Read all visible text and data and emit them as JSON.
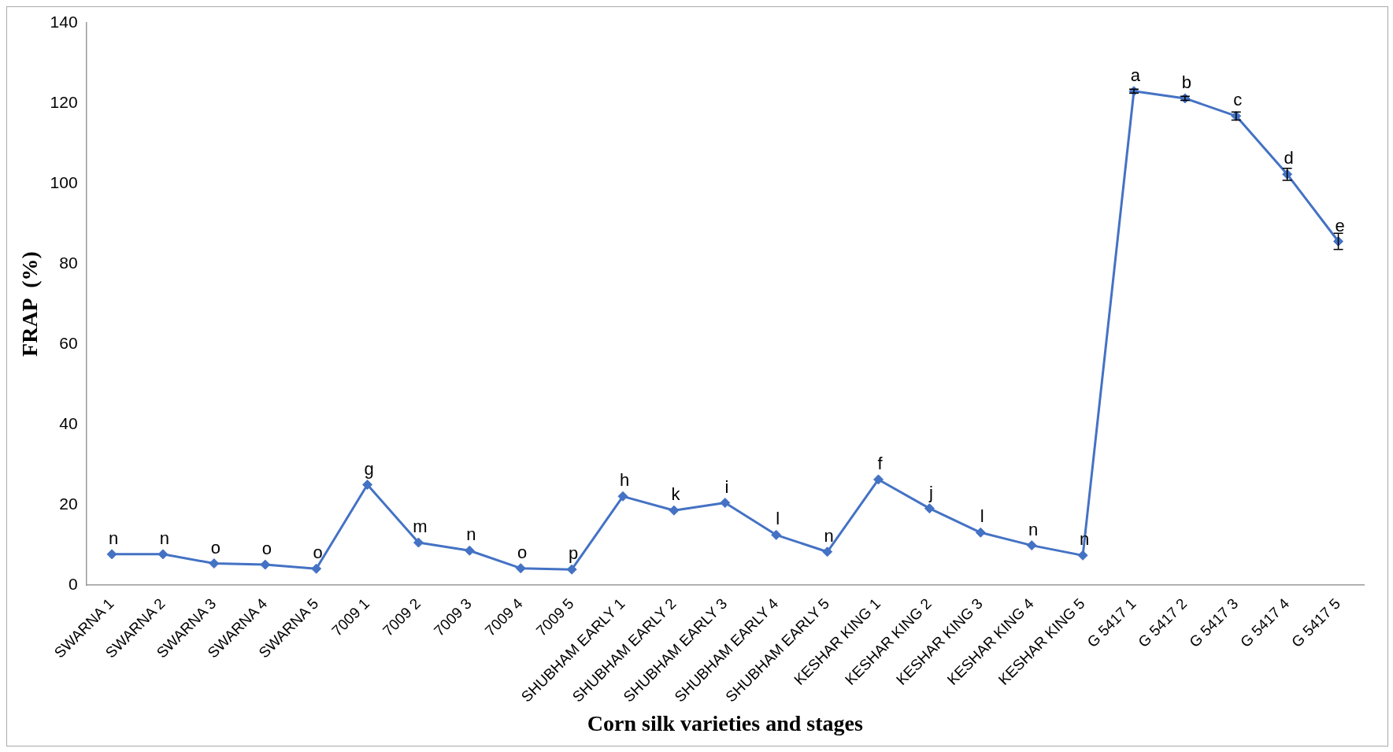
{
  "chart_data": {
    "type": "line",
    "xlabel": "Corn silk varieties and stages",
    "ylabel": "FRAP  (%)",
    "categories": [
      "SWARNA 1",
      "SWARNA 2",
      "SWARNA 3",
      "SWARNA 4",
      "SWARNA 5",
      "7009 1",
      "7009 2",
      "7009 3",
      "7009 4",
      "7009 5",
      "SHUBHAM EARLY 1",
      "SHUBHAM EARLY 2",
      "SHUBHAM EARLY 3",
      "SHUBHAM EARLY 4",
      "SHUBHAM EARLY 5",
      "KESHAR KING 1",
      "KESHAR KING 2",
      "KESHAR KING 3",
      "KESHAR KING 4",
      "KESHAR KING 5",
      "G 5417 1",
      "G 5417 2",
      "G 5417 3",
      "G 5417 4",
      "G 5417 5"
    ],
    "series": [
      {
        "color": "#4472c4",
        "values": [
          7.7,
          7.7,
          5.4,
          5.1,
          4.1,
          25,
          10.6,
          8.6,
          4.2,
          3.9,
          22.1,
          18.6,
          20.5,
          12.5,
          8.3,
          26.3,
          19.1,
          13.1,
          9.9,
          7.4,
          123,
          121.2,
          116.8,
          102.3,
          85.6
        ],
        "errors": [
          null,
          null,
          null,
          null,
          null,
          null,
          null,
          null,
          null,
          null,
          null,
          null,
          null,
          null,
          null,
          null,
          null,
          null,
          null,
          null,
          0.5,
          0.5,
          1,
          1.5,
          2
        ]
      }
    ],
    "ylim": [
      0,
      140
    ],
    "yticks": [
      0,
      20,
      40,
      60,
      80,
      100,
      120,
      140
    ],
    "grid": false,
    "legend": false,
    "marker": "diamond",
    "line_style": "solid",
    "annotations": [
      {
        "text": "n",
        "x": "SWARNA 1",
        "y": 7.7
      },
      {
        "text": "n",
        "x": "SWARNA 2",
        "y": 7.7
      },
      {
        "text": "o",
        "x": "SWARNA 3",
        "y": 5.4
      },
      {
        "text": "o",
        "x": "SWARNA 4",
        "y": 5.1
      },
      {
        "text": "o",
        "x": "SWARNA 5",
        "y": 4.1
      },
      {
        "text": "g",
        "x": "7009 1",
        "y": 25
      },
      {
        "text": "m",
        "x": "7009 2",
        "y": 10.6
      },
      {
        "text": "n",
        "x": "7009 3",
        "y": 8.6
      },
      {
        "text": "o",
        "x": "7009 4",
        "y": 4.2
      },
      {
        "text": "p",
        "x": "7009 5",
        "y": 3.9
      },
      {
        "text": "h",
        "x": "SHUBHAM EARLY 1",
        "y": 22.1
      },
      {
        "text": "k",
        "x": "SHUBHAM EARLY 2",
        "y": 18.6
      },
      {
        "text": "i",
        "x": "SHUBHAM EARLY 3",
        "y": 20.5
      },
      {
        "text": "l",
        "x": "SHUBHAM EARLY 4",
        "y": 12.5
      },
      {
        "text": "n",
        "x": "SHUBHAM EARLY 5",
        "y": 8.3
      },
      {
        "text": "f",
        "x": "KESHAR KING 1",
        "y": 26.3
      },
      {
        "text": "j",
        "x": "KESHAR KING 2",
        "y": 19.1
      },
      {
        "text": "l",
        "x": "KESHAR KING 3",
        "y": 13.1
      },
      {
        "text": "n",
        "x": "KESHAR KING 4",
        "y": 9.9
      },
      {
        "text": "n",
        "x": "KESHAR KING 5",
        "y": 7.4
      },
      {
        "text": "a",
        "x": "G 5417 1",
        "y": 123
      },
      {
        "text": "b",
        "x": "G 5417 2",
        "y": 121.2
      },
      {
        "text": "c",
        "x": "G 5417 3",
        "y": 116.8
      },
      {
        "text": "d",
        "x": "G 5417 4",
        "y": 102.3
      },
      {
        "text": "e",
        "x": "G 5417 5",
        "y": 85.6
      }
    ]
  }
}
